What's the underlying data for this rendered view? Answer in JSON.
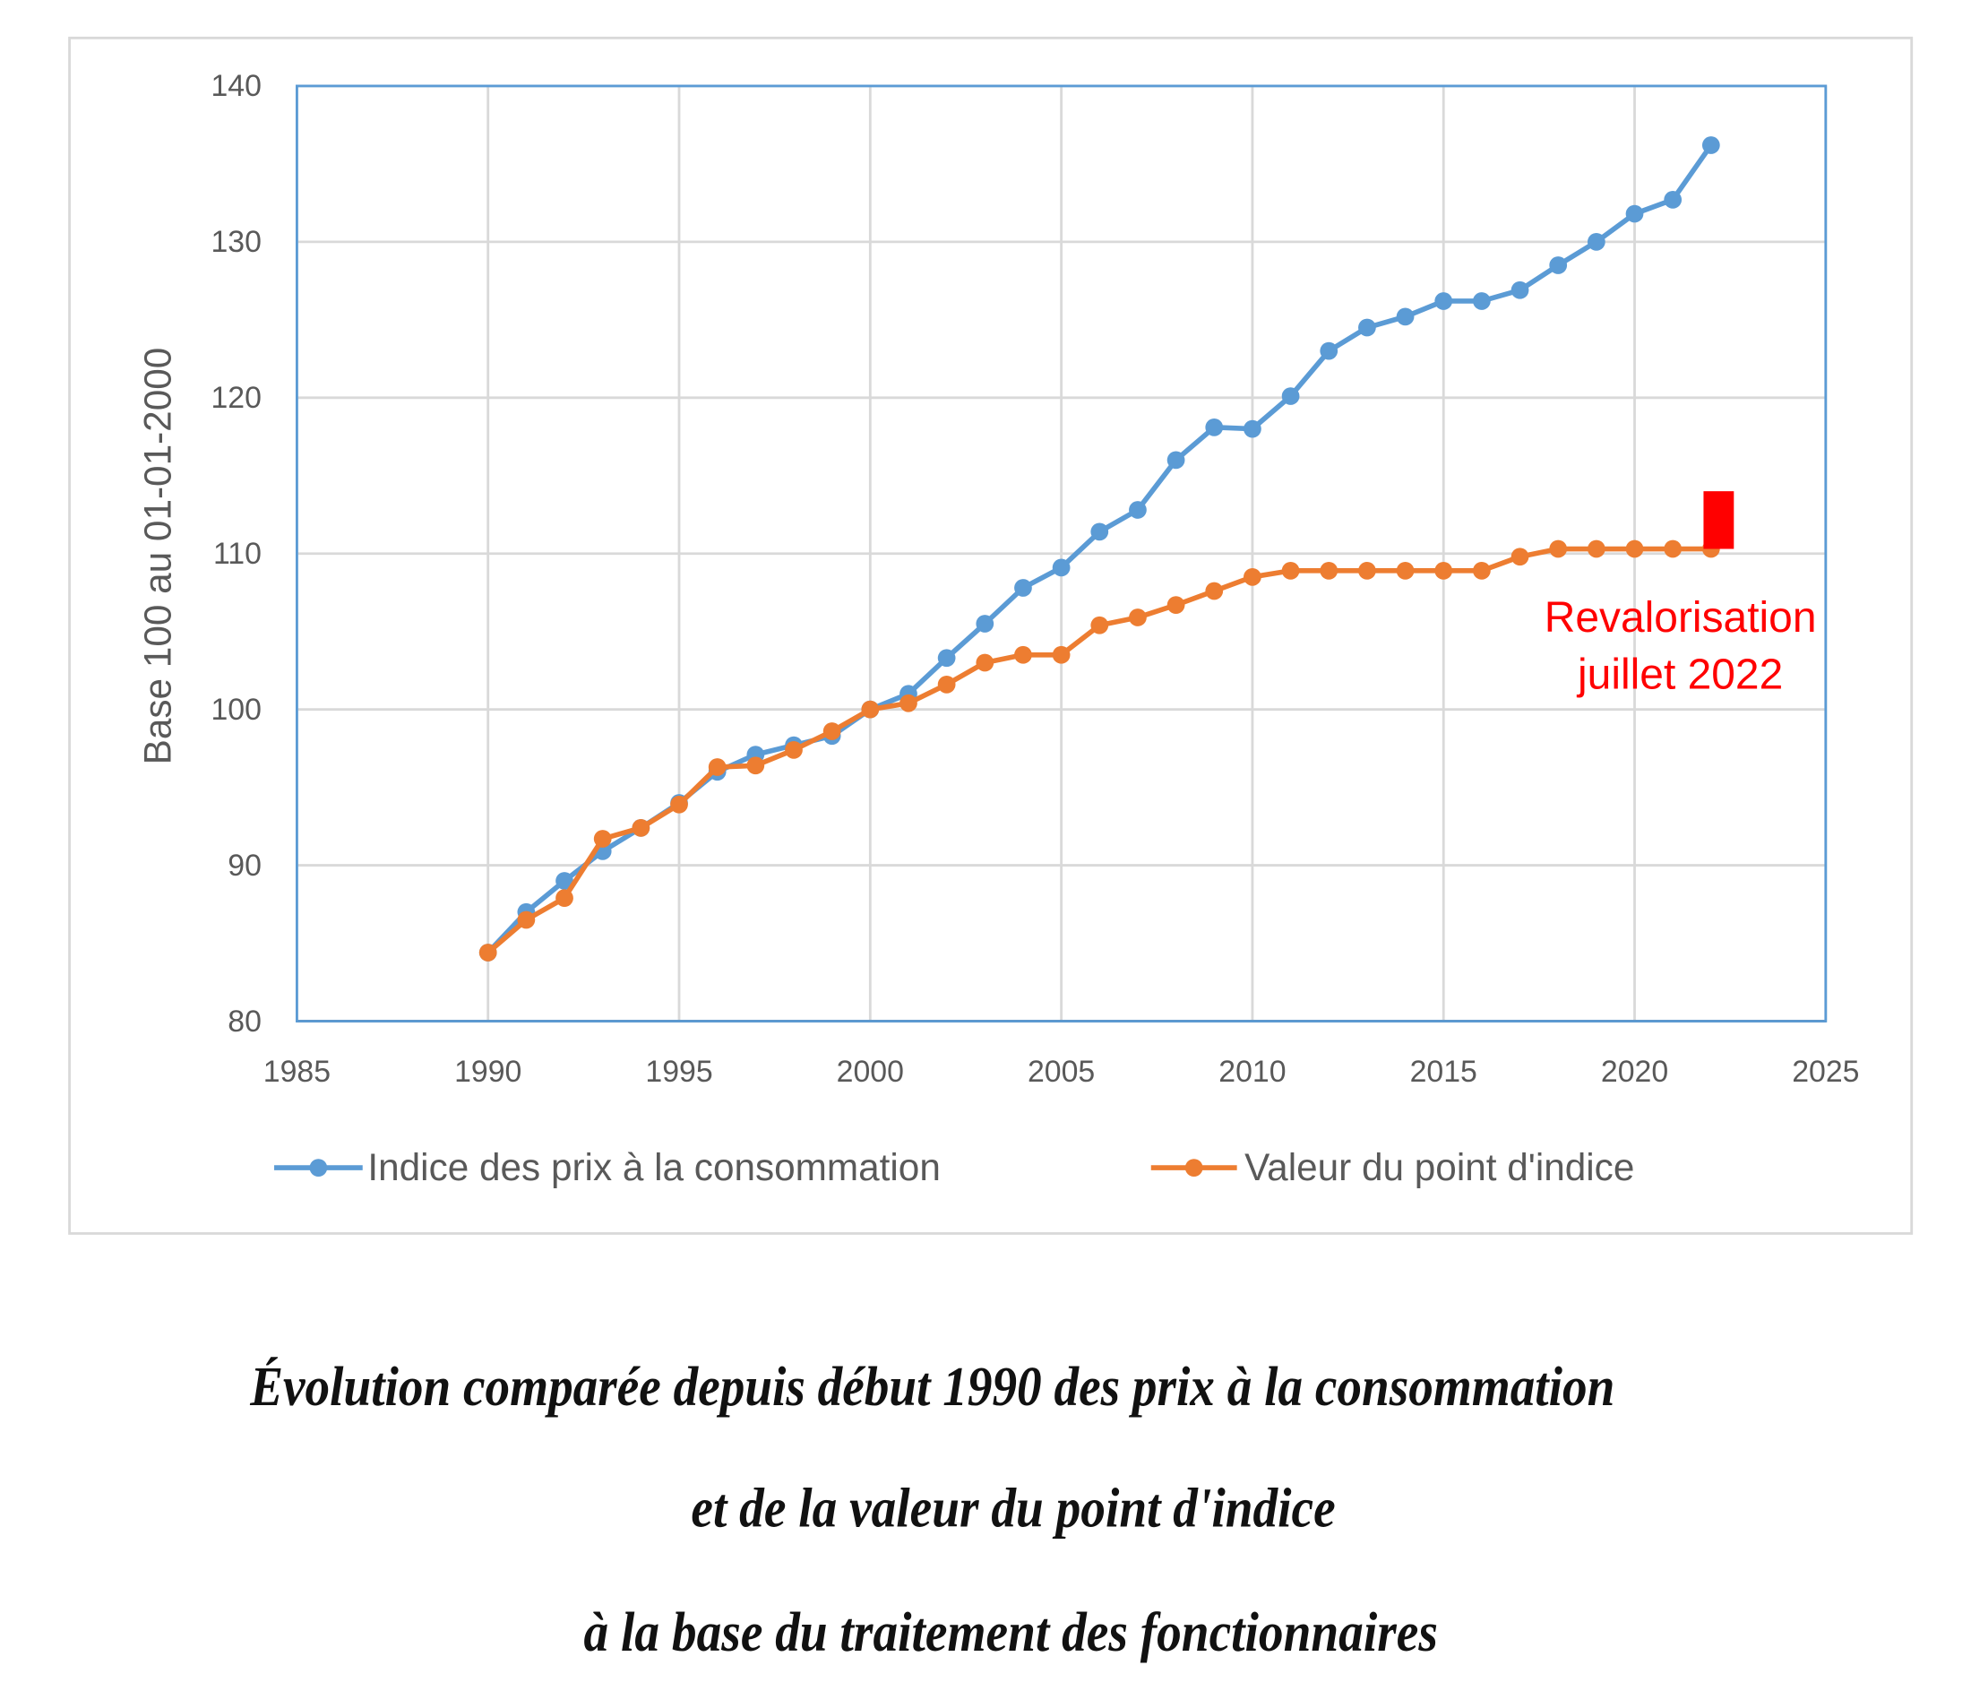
{
  "chart_data": {
    "type": "line",
    "title": "Évolution comparée depuis début 1990 des prix à la consommation et de la valeur du point d'indice à la base du traitement des fonctionnaires",
    "caption_lines": [
      "Évolution comparée depuis début 1990 des prix à la consommation",
      "et de la valeur du point d'indice",
      "à la base du traitement des fonctionnaires"
    ],
    "xlabel": "",
    "ylabel": "Base 100 au 01-01-2000",
    "xlim": [
      1985,
      2025
    ],
    "ylim": [
      80,
      140
    ],
    "xticks": [
      1985,
      1990,
      1995,
      2000,
      2005,
      2010,
      2015,
      2020,
      2025
    ],
    "yticks": [
      80,
      90,
      100,
      110,
      120,
      130,
      140
    ],
    "grid": true,
    "legend_position": "bottom",
    "x": [
      1990,
      1991,
      1992,
      1993,
      1994,
      1995,
      1996,
      1997,
      1998,
      1999,
      2000,
      2001,
      2002,
      2003,
      2004,
      2005,
      2006,
      2007,
      2008,
      2009,
      2010,
      2011,
      2012,
      2013,
      2014,
      2015,
      2016,
      2017,
      2018,
      2019,
      2020,
      2021,
      2022
    ],
    "series": [
      {
        "name": "Indice des prix à la consommation",
        "color": "#5b9bd5",
        "values": [
          84.4,
          87.0,
          89.0,
          90.9,
          92.4,
          94.0,
          96.0,
          97.1,
          97.7,
          98.3,
          100.0,
          101.0,
          103.3,
          105.5,
          107.8,
          109.1,
          111.4,
          112.8,
          116.0,
          118.1,
          118.0,
          120.1,
          123.0,
          124.5,
          125.2,
          126.2,
          126.2,
          126.9,
          128.5,
          130.0,
          131.8,
          132.7,
          136.2
        ]
      },
      {
        "name": "Valeur du point d'indice",
        "color": "#ed7d31",
        "values": [
          84.4,
          86.5,
          87.9,
          91.7,
          92.4,
          93.9,
          96.3,
          96.4,
          97.4,
          98.6,
          100.0,
          100.4,
          101.6,
          103.0,
          103.5,
          103.5,
          105.4,
          105.9,
          106.7,
          107.6,
          108.5,
          108.9,
          108.9,
          108.9,
          108.9,
          108.9,
          108.9,
          109.8,
          110.3,
          110.3,
          110.3,
          110.3,
          110.3
        ]
      }
    ],
    "annotation": {
      "lines": [
        "Revalorisation",
        "juillet 2022"
      ],
      "color": "#ff0000",
      "bar": {
        "x": 2022.2,
        "from": 110.3,
        "to": 114.0
      }
    }
  }
}
